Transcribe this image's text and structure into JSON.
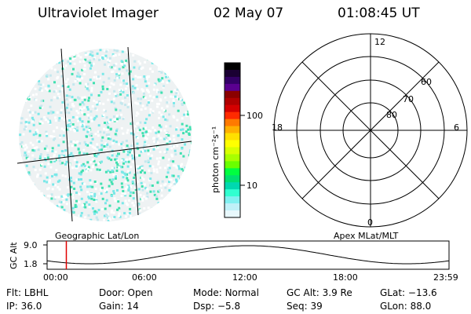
{
  "header": {
    "title": "Ultraviolet Imager",
    "date": "02 May 07",
    "time": "01:08:45 UT"
  },
  "imager_panel": {
    "label": "Geographic Lat/Lon"
  },
  "colorbar": {
    "unit_label": "photon cm⁻²s⁻¹",
    "ticks": [
      "100",
      "10"
    ],
    "colors": [
      "#000000",
      "#1a0033",
      "#330066",
      "#5a0090",
      "#8a0000",
      "#b00000",
      "#d40000",
      "#ff2a00",
      "#ff7a00",
      "#ffb000",
      "#ffe000",
      "#ffff00",
      "#d8ff00",
      "#a8ff00",
      "#6aff00",
      "#00ff40",
      "#00e070",
      "#00d8b0",
      "#30ffd0",
      "#80f0f0",
      "#c0f0f8",
      "#e8f8fc"
    ]
  },
  "polar_panel": {
    "label": "Apex MLat/MLT",
    "mlt_labels": [
      "12",
      "18",
      "6",
      "0"
    ],
    "mlat_labels": [
      "60",
      "70",
      "80"
    ]
  },
  "timeline": {
    "axis_label": "GC Alt",
    "y_ticks": [
      "9.0",
      "1.8"
    ],
    "x_ticks": [
      "00:00",
      "06:00",
      "12:00",
      "18:00",
      "23:59"
    ],
    "current_time_marker": 1.15
  },
  "footer": {
    "row1": [
      {
        "label": "Flt:",
        "value": "LBHL"
      },
      {
        "label": "Door:",
        "value": "Open"
      },
      {
        "label": "Mode:",
        "value": "Normal"
      },
      {
        "label": "GC Alt:",
        "value": "3.9 Re"
      },
      {
        "label": "GLat:",
        "value": "−13.6"
      }
    ],
    "row2": [
      {
        "label": "IP:",
        "value": "36.0"
      },
      {
        "label": "Gain:",
        "value": "14"
      },
      {
        "label": "Dsp:",
        "value": "−5.8"
      },
      {
        "label": "Seq:",
        "value": "39"
      },
      {
        "label": "GLon:",
        "value": "88.0"
      }
    ]
  }
}
